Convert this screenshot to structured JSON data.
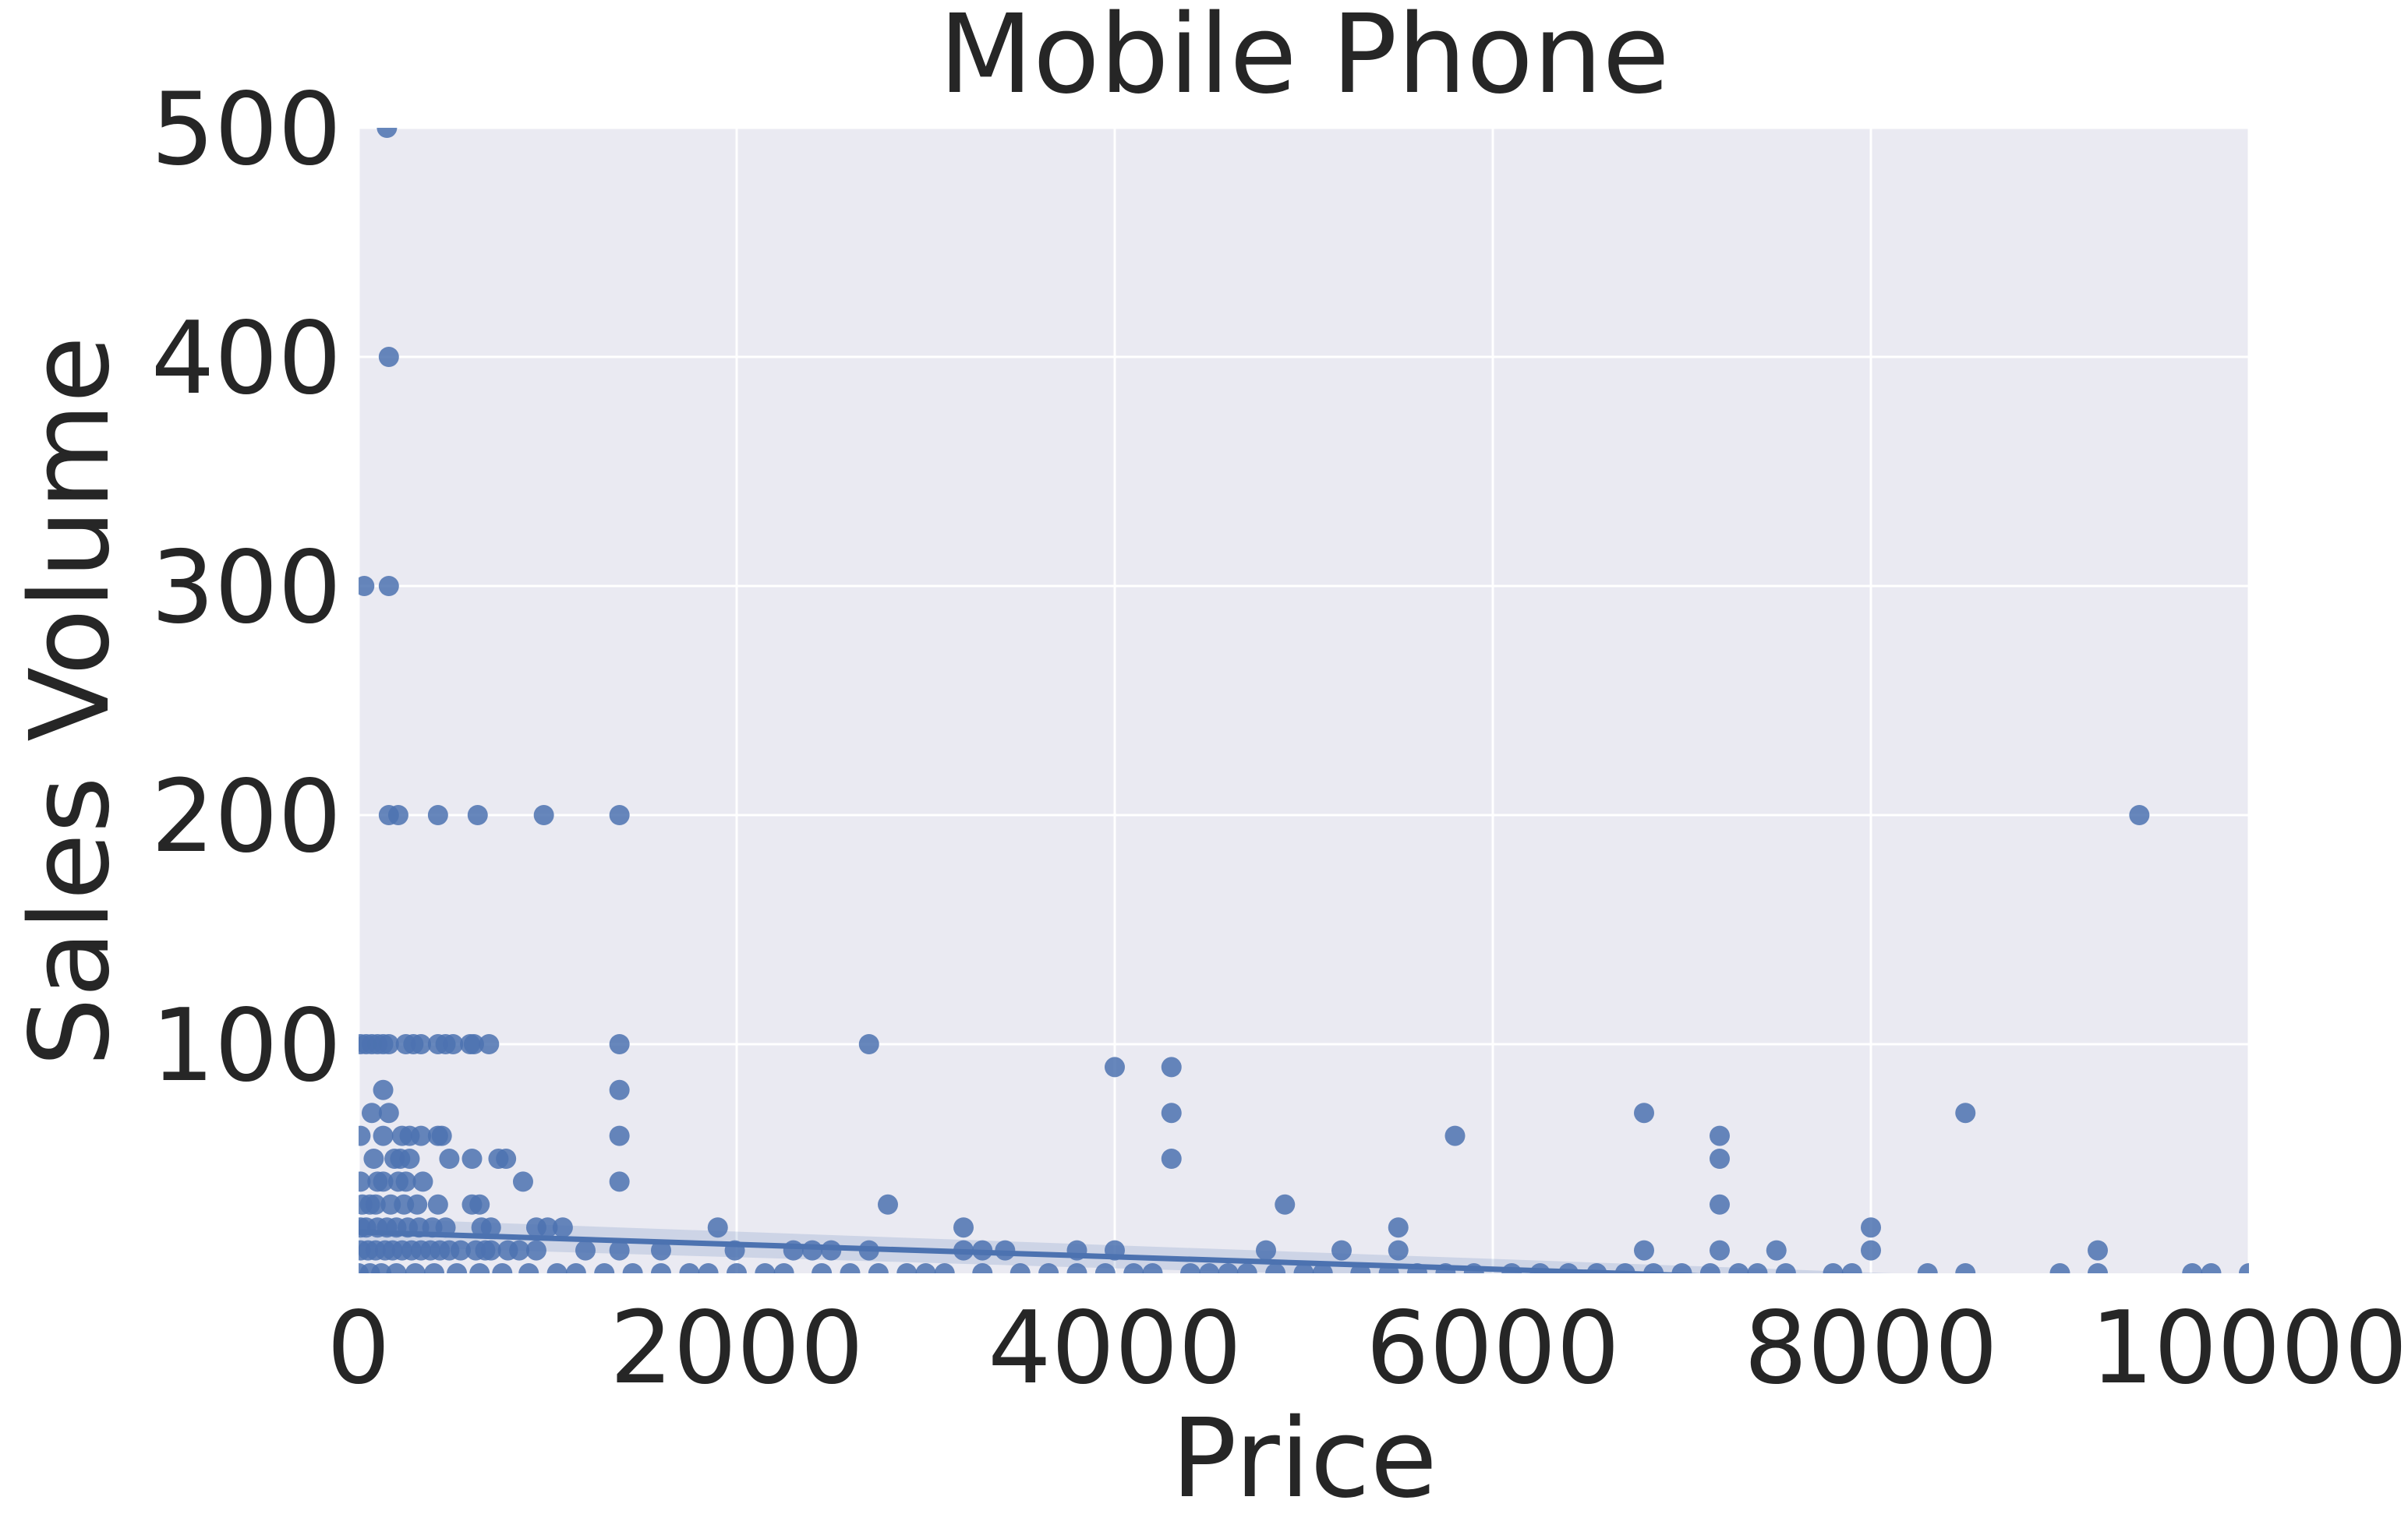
{
  "chart_data": {
    "type": "scatter",
    "title": "Mobile Phone",
    "xlabel": "Price",
    "ylabel": "Sales Volume",
    "xlim": [
      0,
      10000
    ],
    "ylim": [
      0,
      500
    ],
    "xticks": [
      "0",
      "2000",
      "4000",
      "6000",
      "8000",
      "10000"
    ],
    "yticks": [
      "100",
      "200",
      "300",
      "400",
      "500"
    ],
    "xtick_values": [
      0,
      2000,
      4000,
      6000,
      8000,
      10000
    ],
    "ytick_values": [
      100,
      200,
      300,
      400,
      500
    ],
    "grid": true,
    "background": "#EAEAF2",
    "point_color": "#4C72B0",
    "regression_line": {
      "x": [
        0,
        10000
      ],
      "y": [
        18,
        -9
      ]
    },
    "points": [
      [
        150,
        500
      ],
      [
        160,
        400
      ],
      [
        30,
        300
      ],
      [
        160,
        300
      ],
      [
        160,
        200
      ],
      [
        210,
        200
      ],
      [
        420,
        200
      ],
      [
        630,
        200
      ],
      [
        980,
        200
      ],
      [
        1380,
        200
      ],
      [
        9420,
        200
      ],
      [
        10,
        100
      ],
      [
        40,
        100
      ],
      [
        70,
        100
      ],
      [
        100,
        100
      ],
      [
        130,
        100
      ],
      [
        160,
        100
      ],
      [
        250,
        100
      ],
      [
        290,
        100
      ],
      [
        330,
        100
      ],
      [
        420,
        100
      ],
      [
        460,
        100
      ],
      [
        500,
        100
      ],
      [
        590,
        100
      ],
      [
        610,
        100
      ],
      [
        690,
        100
      ],
      [
        1380,
        100
      ],
      [
        2700,
        100
      ],
      [
        4000,
        90
      ],
      [
        4300,
        90
      ],
      [
        130,
        80
      ],
      [
        1380,
        80
      ],
      [
        70,
        70
      ],
      [
        160,
        70
      ],
      [
        4300,
        70
      ],
      [
        6800,
        70
      ],
      [
        8500,
        70
      ],
      [
        10,
        60
      ],
      [
        130,
        60
      ],
      [
        230,
        60
      ],
      [
        270,
        60
      ],
      [
        330,
        60
      ],
      [
        420,
        60
      ],
      [
        440,
        60
      ],
      [
        1380,
        60
      ],
      [
        5800,
        60
      ],
      [
        7200,
        60
      ],
      [
        80,
        50
      ],
      [
        190,
        50
      ],
      [
        220,
        50
      ],
      [
        270,
        50
      ],
      [
        480,
        50
      ],
      [
        600,
        50
      ],
      [
        740,
        50
      ],
      [
        780,
        50
      ],
      [
        4300,
        50
      ],
      [
        7200,
        50
      ],
      [
        10,
        40
      ],
      [
        100,
        40
      ],
      [
        130,
        40
      ],
      [
        210,
        40
      ],
      [
        250,
        40
      ],
      [
        340,
        40
      ],
      [
        870,
        40
      ],
      [
        1380,
        40
      ],
      [
        20,
        30
      ],
      [
        60,
        30
      ],
      [
        90,
        30
      ],
      [
        170,
        30
      ],
      [
        240,
        30
      ],
      [
        310,
        30
      ],
      [
        420,
        30
      ],
      [
        600,
        30
      ],
      [
        640,
        30
      ],
      [
        2800,
        30
      ],
      [
        4900,
        30
      ],
      [
        7200,
        30
      ],
      [
        10,
        20
      ],
      [
        40,
        20
      ],
      [
        100,
        20
      ],
      [
        150,
        20
      ],
      [
        200,
        20
      ],
      [
        260,
        20
      ],
      [
        320,
        20
      ],
      [
        390,
        20
      ],
      [
        460,
        20
      ],
      [
        650,
        20
      ],
      [
        700,
        20
      ],
      [
        940,
        20
      ],
      [
        1000,
        20
      ],
      [
        1080,
        20
      ],
      [
        1900,
        20
      ],
      [
        3200,
        20
      ],
      [
        5500,
        20
      ],
      [
        8000,
        20
      ],
      [
        10,
        10
      ],
      [
        50,
        10
      ],
      [
        90,
        10
      ],
      [
        140,
        10
      ],
      [
        180,
        10
      ],
      [
        230,
        10
      ],
      [
        280,
        10
      ],
      [
        330,
        10
      ],
      [
        380,
        10
      ],
      [
        430,
        10
      ],
      [
        480,
        10
      ],
      [
        540,
        10
      ],
      [
        620,
        10
      ],
      [
        670,
        10
      ],
      [
        700,
        10
      ],
      [
        790,
        10
      ],
      [
        850,
        10
      ],
      [
        940,
        10
      ],
      [
        1200,
        10
      ],
      [
        1380,
        10
      ],
      [
        1600,
        10
      ],
      [
        1990,
        10
      ],
      [
        2300,
        10
      ],
      [
        2400,
        10
      ],
      [
        2500,
        10
      ],
      [
        2700,
        10
      ],
      [
        3200,
        10
      ],
      [
        3300,
        10
      ],
      [
        3420,
        10
      ],
      [
        3800,
        10
      ],
      [
        4000,
        10
      ],
      [
        4800,
        10
      ],
      [
        5200,
        10
      ],
      [
        5500,
        10
      ],
      [
        6800,
        10
      ],
      [
        7200,
        10
      ],
      [
        7500,
        10
      ],
      [
        8000,
        10
      ],
      [
        9200,
        10
      ],
      [
        0,
        0
      ],
      [
        60,
        0
      ],
      [
        120,
        0
      ],
      [
        200,
        0
      ],
      [
        300,
        0
      ],
      [
        400,
        0
      ],
      [
        520,
        0
      ],
      [
        640,
        0
      ],
      [
        760,
        0
      ],
      [
        900,
        0
      ],
      [
        1050,
        0
      ],
      [
        1150,
        0
      ],
      [
        1300,
        0
      ],
      [
        1450,
        0
      ],
      [
        1600,
        0
      ],
      [
        1750,
        0
      ],
      [
        1850,
        0
      ],
      [
        2000,
        0
      ],
      [
        2150,
        0
      ],
      [
        2250,
        0
      ],
      [
        2450,
        0
      ],
      [
        2600,
        0
      ],
      [
        2750,
        0
      ],
      [
        2900,
        0
      ],
      [
        3000,
        0
      ],
      [
        3100,
        0
      ],
      [
        3300,
        0
      ],
      [
        3500,
        0
      ],
      [
        3650,
        0
      ],
      [
        3800,
        0
      ],
      [
        3950,
        0
      ],
      [
        4100,
        0
      ],
      [
        4200,
        0
      ],
      [
        4400,
        0
      ],
      [
        4500,
        0
      ],
      [
        4600,
        0
      ],
      [
        4700,
        0
      ],
      [
        4850,
        0
      ],
      [
        5000,
        0
      ],
      [
        5100,
        0
      ],
      [
        5300,
        0
      ],
      [
        5450,
        0
      ],
      [
        5600,
        0
      ],
      [
        5750,
        0
      ],
      [
        5900,
        0
      ],
      [
        6100,
        0
      ],
      [
        6250,
        0
      ],
      [
        6400,
        0
      ],
      [
        6550,
        0
      ],
      [
        6700,
        0
      ],
      [
        6850,
        0
      ],
      [
        7000,
        0
      ],
      [
        7150,
        0
      ],
      [
        7300,
        0
      ],
      [
        7400,
        0
      ],
      [
        7550,
        0
      ],
      [
        7800,
        0
      ],
      [
        7900,
        0
      ],
      [
        8300,
        0
      ],
      [
        8500,
        0
      ],
      [
        9000,
        0
      ],
      [
        9200,
        0
      ],
      [
        9700,
        0
      ],
      [
        9800,
        0
      ],
      [
        10000,
        0
      ]
    ]
  }
}
